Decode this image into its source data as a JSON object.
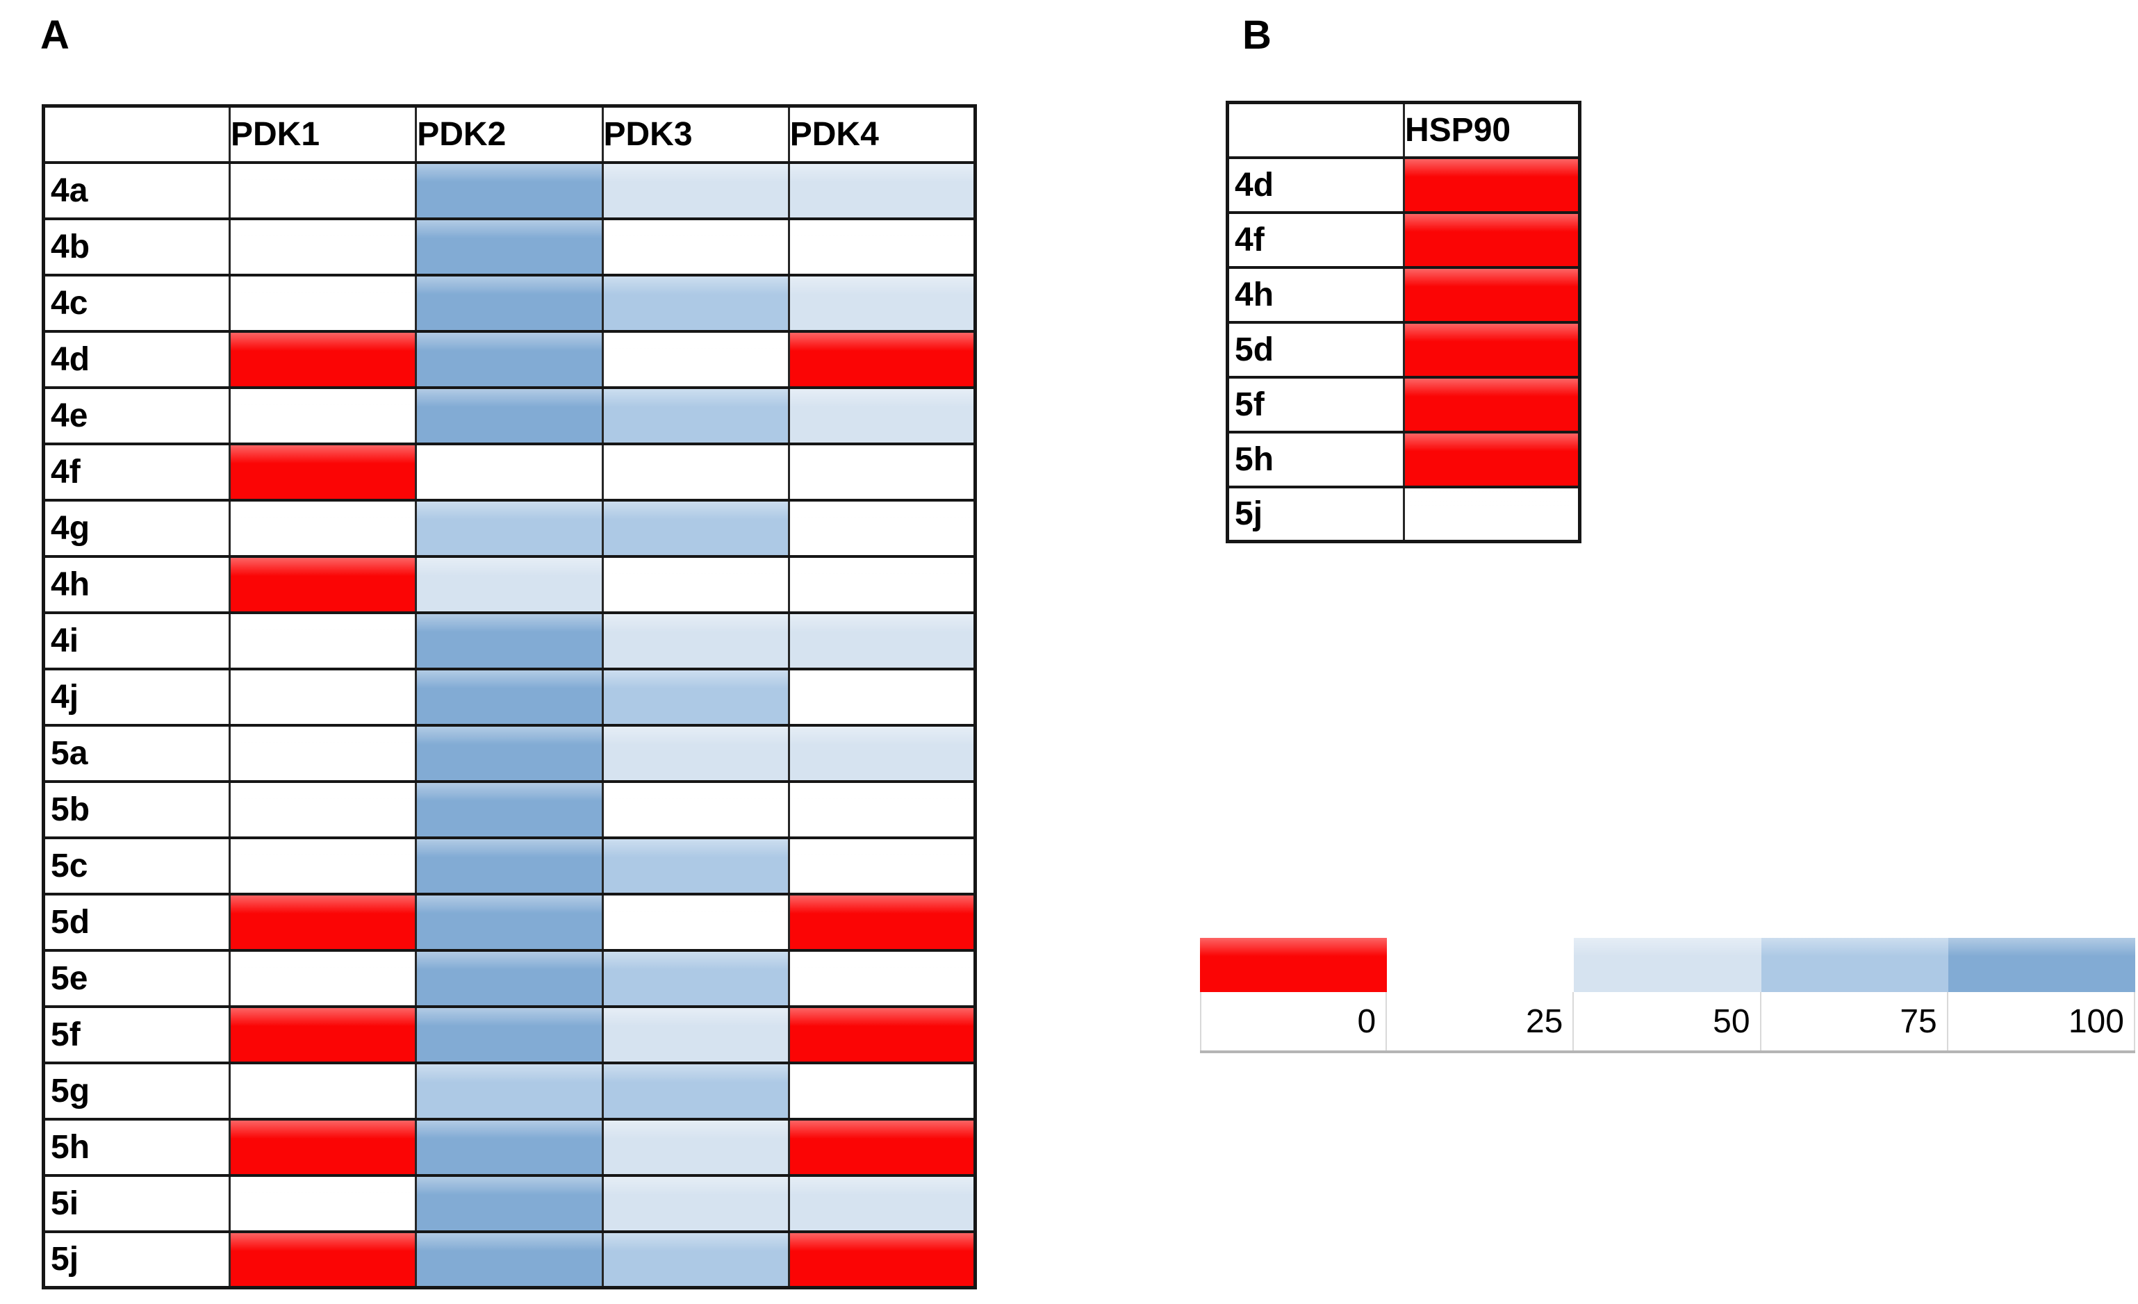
{
  "palette": {
    "0": "#fb0505",
    "25": "#ffffff",
    "50": "#d6e3f0",
    "75": "#adc9e5",
    "100": "#82abd4"
  },
  "legend": {
    "ticks": [
      "0",
      "25",
      "50",
      "75",
      "100"
    ],
    "swatch_values": [
      0,
      25,
      50,
      75,
      100
    ]
  },
  "chart_data": [
    {
      "type": "heatmap",
      "title": "A",
      "columns": [
        "PDK1",
        "PDK2",
        "PDK3",
        "PDK4"
      ],
      "rows": [
        "4a",
        "4b",
        "4c",
        "4d",
        "4e",
        "4f",
        "4g",
        "4h",
        "4i",
        "4j",
        "5a",
        "5b",
        "5c",
        "5d",
        "5e",
        "5f",
        "5g",
        "5h",
        "5i",
        "5j"
      ],
      "values": [
        [
          25,
          100,
          50,
          50
        ],
        [
          25,
          100,
          25,
          25
        ],
        [
          25,
          100,
          75,
          50
        ],
        [
          0,
          100,
          25,
          0
        ],
        [
          25,
          100,
          75,
          50
        ],
        [
          0,
          25,
          25,
          25
        ],
        [
          25,
          75,
          75,
          25
        ],
        [
          0,
          50,
          25,
          25
        ],
        [
          25,
          100,
          50,
          50
        ],
        [
          25,
          100,
          75,
          25
        ],
        [
          25,
          100,
          50,
          50
        ],
        [
          25,
          100,
          25,
          25
        ],
        [
          25,
          100,
          75,
          25
        ],
        [
          0,
          100,
          25,
          0
        ],
        [
          25,
          100,
          75,
          25
        ],
        [
          0,
          100,
          50,
          0
        ],
        [
          25,
          75,
          75,
          25
        ],
        [
          0,
          100,
          50,
          0
        ],
        [
          25,
          100,
          50,
          50
        ],
        [
          0,
          100,
          75,
          0
        ]
      ],
      "colorscale": {
        "type": "discrete",
        "stops": [
          {
            "value": 0,
            "color": "#fb0505"
          },
          {
            "value": 25,
            "color": "#ffffff"
          },
          {
            "value": 50,
            "color": "#d6e3f0"
          },
          {
            "value": 75,
            "color": "#adc9e5"
          },
          {
            "value": 100,
            "color": "#82abd4"
          }
        ]
      }
    },
    {
      "type": "heatmap",
      "title": "B",
      "columns": [
        "HSP90"
      ],
      "rows": [
        "4d",
        "4f",
        "4h",
        "5d",
        "5f",
        "5h",
        "5j"
      ],
      "values": [
        [
          0
        ],
        [
          0
        ],
        [
          0
        ],
        [
          0
        ],
        [
          0
        ],
        [
          0
        ],
        [
          25
        ]
      ],
      "colorscale": {
        "type": "discrete",
        "stops": [
          {
            "value": 0,
            "color": "#fb0505"
          },
          {
            "value": 25,
            "color": "#ffffff"
          }
        ]
      }
    }
  ]
}
